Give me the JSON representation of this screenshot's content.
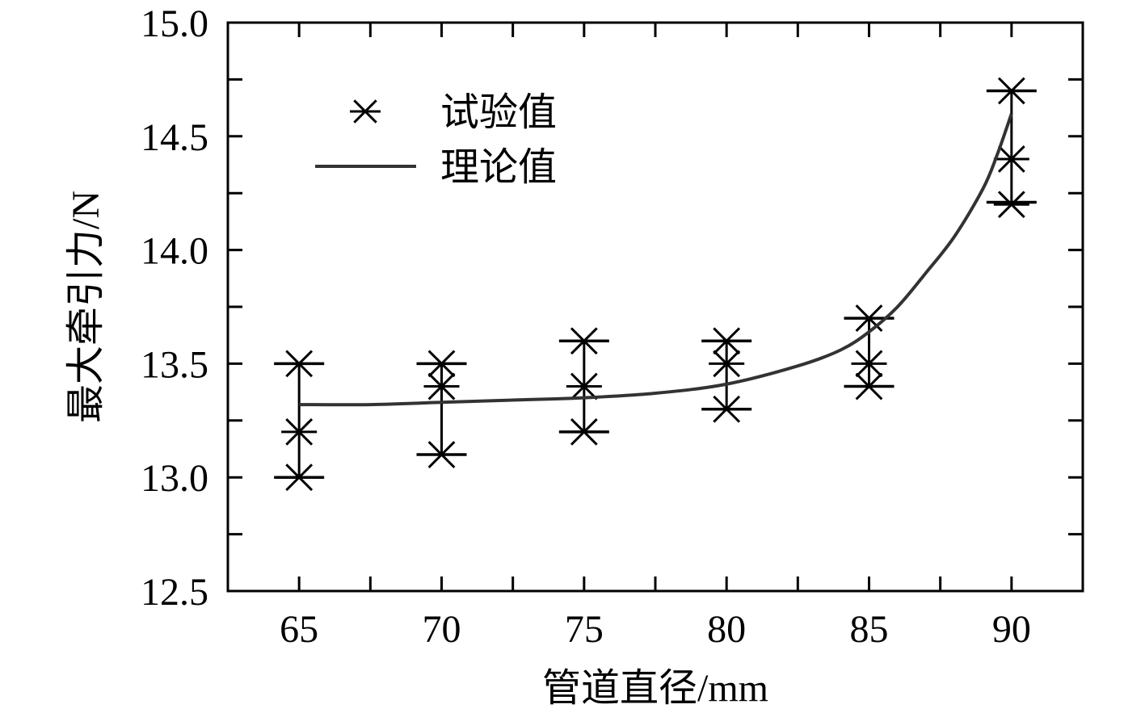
{
  "chart_data": {
    "type": "scatter",
    "title": "",
    "xlabel": "管道直径/mm",
    "ylabel": "最大牵引力/N",
    "xlim": [
      62.5,
      92.5
    ],
    "ylim": [
      12.5,
      15.0
    ],
    "xticks": [
      "65",
      "70",
      "75",
      "80",
      "85",
      "90"
    ],
    "xtick_values": [
      65,
      70,
      75,
      80,
      85,
      90
    ],
    "yticks": [
      "12.5",
      "13.0",
      "13.5",
      "14.0",
      "14.5",
      "15.0"
    ],
    "ytick_values": [
      12.5,
      13.0,
      13.5,
      14.0,
      14.5,
      15.0
    ],
    "grid": false,
    "legend_position": "top-left",
    "series": [
      {
        "name": "试验值",
        "kind": "scatter-with-range",
        "x": [
          65,
          70,
          75,
          80,
          85,
          90
        ],
        "points": [
          [
            13.0,
            13.2,
            13.5
          ],
          [
            13.1,
            13.4,
            13.5
          ],
          [
            13.2,
            13.4,
            13.6
          ],
          [
            13.3,
            13.5,
            13.6
          ],
          [
            13.4,
            13.5,
            13.7
          ],
          [
            14.2,
            14.4,
            14.7
          ]
        ],
        "range_low": [
          13.0,
          13.1,
          13.2,
          13.3,
          13.4,
          14.21
        ],
        "range_high": [
          13.5,
          13.5,
          13.6,
          13.6,
          13.7,
          14.7
        ]
      },
      {
        "name": "理论值",
        "kind": "line",
        "x": [
          65,
          67.5,
          70,
          72.5,
          75,
          77.5,
          80,
          82.5,
          84,
          85,
          86,
          87,
          88,
          89,
          89.5,
          90
        ],
        "y": [
          13.32,
          13.32,
          13.33,
          13.34,
          13.35,
          13.37,
          13.41,
          13.49,
          13.56,
          13.64,
          13.75,
          13.9,
          14.06,
          14.27,
          14.42,
          14.6
        ]
      }
    ]
  }
}
